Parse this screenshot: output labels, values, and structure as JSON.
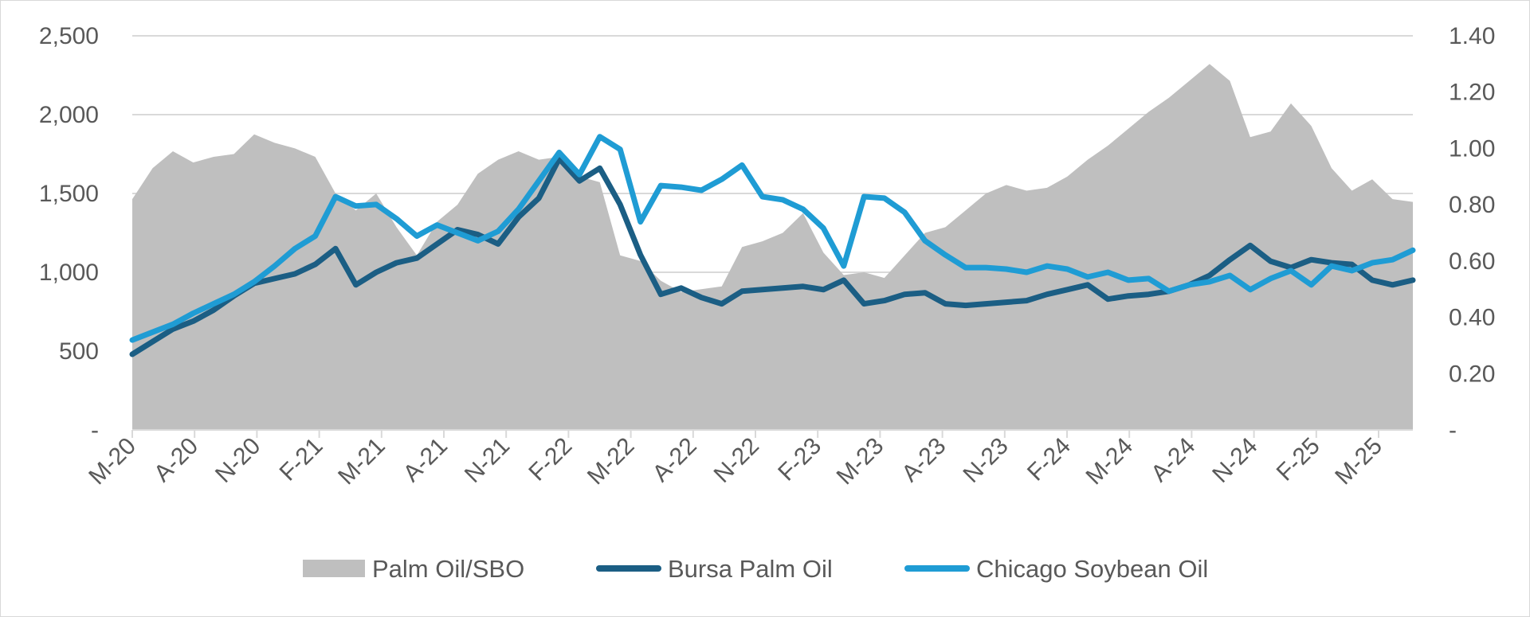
{
  "chart_data": {
    "type": "line",
    "title": "",
    "x_tick_labels": [
      "M-20",
      "A-20",
      "N-20",
      "F-21",
      "M-21",
      "A-21",
      "N-21",
      "F-22",
      "M-22",
      "A-22",
      "N-22",
      "F-23",
      "M-23",
      "A-23",
      "N-23",
      "F-24",
      "M-24",
      "A-24",
      "N-24",
      "F-25",
      "M-25"
    ],
    "y_left": {
      "ylim": [
        0,
        2500
      ],
      "tick_values": [
        0,
        500,
        1000,
        1500,
        2000,
        2500
      ],
      "tick_labels": [
        "-",
        "500",
        "1,000",
        "1,500",
        "2,000",
        "2,500"
      ]
    },
    "y_right": {
      "ylim": [
        0,
        1.4
      ],
      "tick_values": [
        0,
        0.2,
        0.4,
        0.6,
        0.8,
        1.0,
        1.2,
        1.4
      ],
      "tick_labels": [
        "-",
        "0.20",
        "0.40",
        "0.60",
        "0.80",
        "1.00",
        "1.20",
        "1.40"
      ]
    },
    "grid": true,
    "legend_position": "bottom",
    "x_months_since_start": [
      0,
      1,
      2,
      3,
      4,
      5,
      6,
      7,
      8,
      9,
      10,
      11,
      12,
      13,
      14,
      15,
      16,
      17,
      18,
      19,
      20,
      21,
      22,
      23,
      24,
      25,
      26,
      27,
      28,
      29,
      30,
      31,
      32,
      33,
      34,
      35,
      36,
      37,
      38,
      39,
      40,
      41,
      42,
      43,
      44,
      45,
      46,
      47,
      48,
      49,
      50,
      51,
      52,
      53,
      54,
      55,
      56,
      57,
      58,
      59,
      60,
      61,
      62,
      63
    ],
    "series": [
      {
        "name": "Palm Oil/SBO",
        "type": "area",
        "axis": "right",
        "color": "#bfbfbf",
        "values": [
          0.82,
          0.93,
          0.99,
          0.95,
          0.97,
          0.98,
          1.05,
          1.02,
          1.0,
          0.97,
          0.84,
          0.78,
          0.84,
          0.72,
          0.62,
          0.74,
          0.8,
          0.91,
          0.96,
          0.99,
          0.96,
          0.97,
          0.9,
          0.88,
          0.62,
          0.6,
          0.53,
          0.49,
          0.5,
          0.51,
          0.65,
          0.67,
          0.7,
          0.77,
          0.63,
          0.55,
          0.56,
          0.54,
          0.62,
          0.7,
          0.72,
          0.78,
          0.84,
          0.87,
          0.85,
          0.86,
          0.9,
          0.96,
          1.01,
          1.07,
          1.13,
          1.18,
          1.24,
          1.3,
          1.24,
          1.04,
          1.06,
          1.16,
          1.08,
          0.93,
          0.85,
          0.89,
          0.82,
          0.81
        ]
      },
      {
        "name": "Bursa Palm Oil",
        "type": "line",
        "axis": "left",
        "color": "#1b5e84",
        "values": [
          480,
          560,
          640,
          690,
          760,
          850,
          930,
          960,
          990,
          1050,
          1150,
          920,
          1000,
          1060,
          1090,
          1180,
          1270,
          1240,
          1180,
          1350,
          1470,
          1720,
          1580,
          1660,
          1430,
          1110,
          860,
          900,
          840,
          800,
          880,
          890,
          900,
          910,
          890,
          950,
          800,
          820,
          860,
          870,
          800,
          790,
          800,
          810,
          820,
          860,
          890,
          920,
          830,
          850,
          860,
          880,
          920,
          980,
          1080,
          1170,
          1070,
          1030,
          1080,
          1060,
          1050,
          950,
          920,
          950
        ]
      },
      {
        "name": "Chicago Soybean Oil",
        "type": "line",
        "axis": "left",
        "color": "#1f9cd4",
        "values": [
          570,
          620,
          670,
          740,
          800,
          860,
          940,
          1040,
          1150,
          1230,
          1480,
          1420,
          1430,
          1340,
          1230,
          1300,
          1250,
          1200,
          1260,
          1400,
          1580,
          1760,
          1620,
          1860,
          1780,
          1320,
          1550,
          1540,
          1520,
          1590,
          1680,
          1480,
          1460,
          1400,
          1280,
          1040,
          1480,
          1470,
          1380,
          1200,
          1110,
          1030,
          1030,
          1020,
          1000,
          1040,
          1020,
          970,
          1000,
          950,
          960,
          880,
          920,
          940,
          980,
          890,
          960,
          1010,
          920,
          1040,
          1010,
          1060,
          1080,
          1140
        ]
      }
    ]
  },
  "legend": {
    "items": [
      {
        "label": "Palm Oil/SBO",
        "color": "#bfbfbf",
        "swatch": "box"
      },
      {
        "label": "Bursa Palm Oil",
        "color": "#1b5e84",
        "swatch": "line"
      },
      {
        "label": "Chicago Soybean Oil",
        "color": "#1f9cd4",
        "swatch": "line"
      }
    ]
  }
}
